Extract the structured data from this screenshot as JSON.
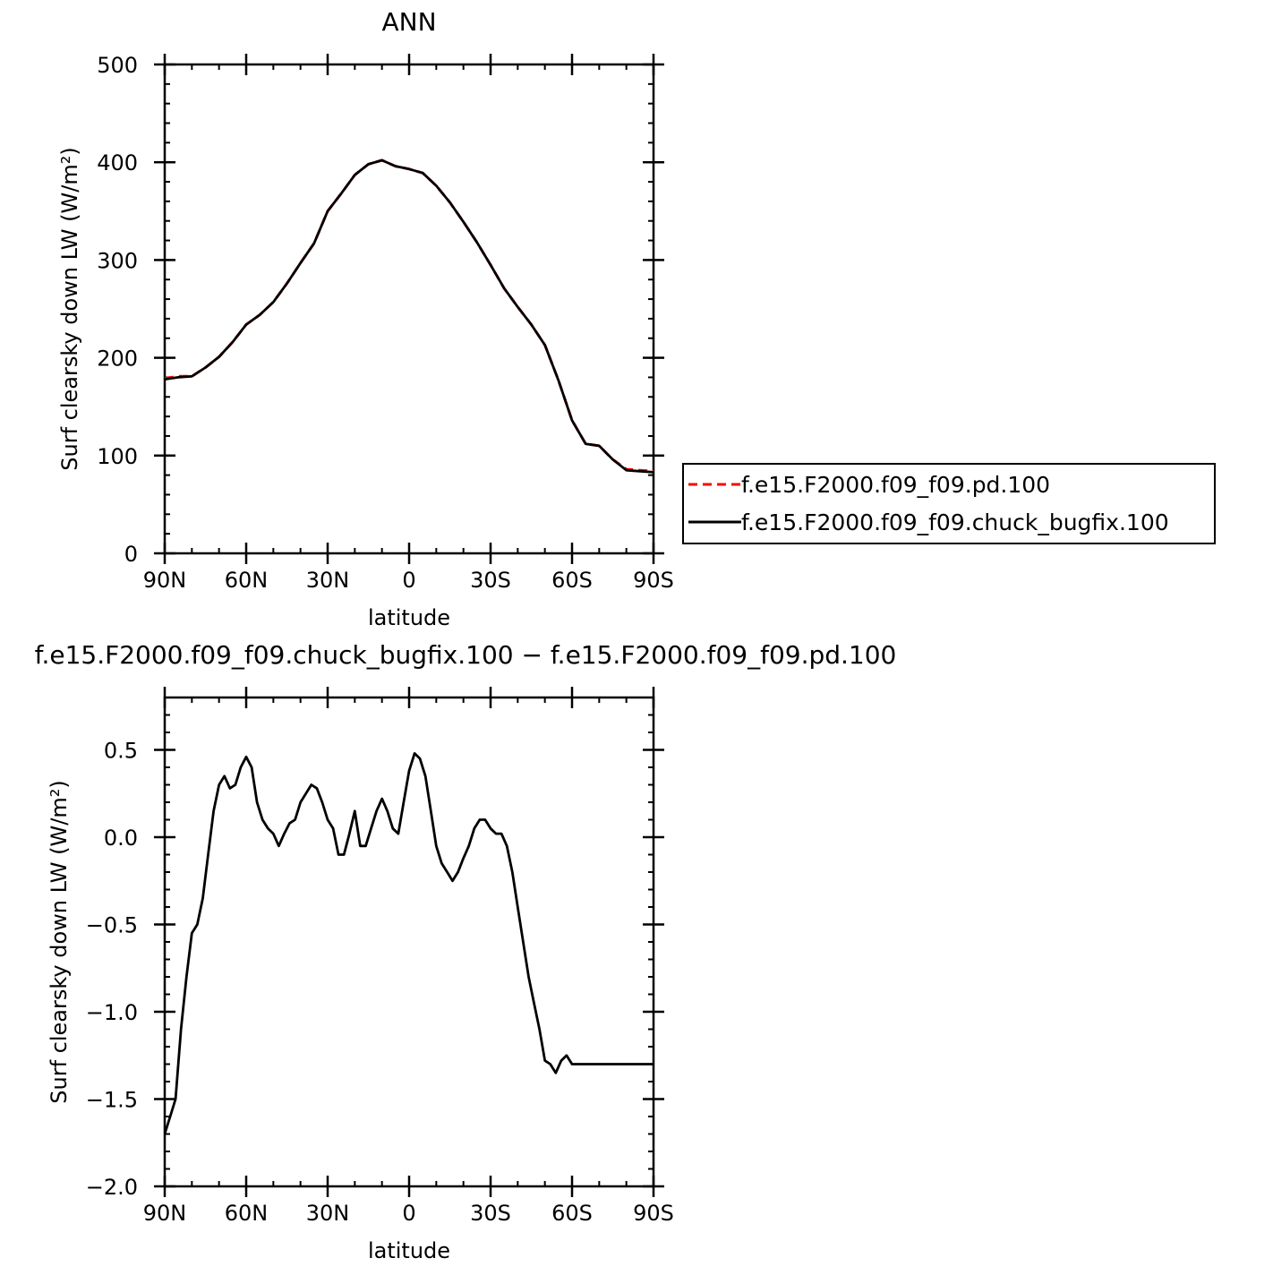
{
  "chart_data": [
    {
      "type": "line",
      "title": "ANN",
      "xlabel": "latitude",
      "ylabel": "Surf clearsky down LW (W/m²)",
      "xlim": [
        90,
        -90
      ],
      "ylim": [
        0,
        500
      ],
      "xticks": [
        {
          "value": 90,
          "label": "90N"
        },
        {
          "value": 60,
          "label": "60N"
        },
        {
          "value": 30,
          "label": "30N"
        },
        {
          "value": 0,
          "label": "0"
        },
        {
          "value": -30,
          "label": "30S"
        },
        {
          "value": -60,
          "label": "60S"
        },
        {
          "value": -90,
          "label": "90S"
        }
      ],
      "yticks": [
        {
          "value": 0,
          "label": "0"
        },
        {
          "value": 100,
          "label": "100"
        },
        {
          "value": 200,
          "label": "200"
        },
        {
          "value": 300,
          "label": "300"
        },
        {
          "value": 400,
          "label": "400"
        },
        {
          "value": 500,
          "label": "500"
        }
      ],
      "legend": {
        "position": "right"
      },
      "series": [
        {
          "name": "f.e15.F2000.f09_f09.pd.100",
          "color": "#ff0000",
          "dash": "dashed",
          "x": [
            90,
            85,
            80,
            75,
            70,
            65,
            60,
            55,
            50,
            45,
            40,
            35,
            30,
            25,
            20,
            15,
            10,
            5,
            0,
            -5,
            -10,
            -15,
            -20,
            -25,
            -30,
            -35,
            -40,
            -45,
            -50,
            -55,
            -60,
            -65,
            -70,
            -75,
            -80,
            -85,
            -90
          ],
          "y": [
            179,
            181,
            181,
            190,
            201,
            216,
            234,
            244,
            257,
            276,
            297,
            317,
            350,
            368,
            387,
            398,
            402,
            396,
            393,
            389,
            376,
            359,
            339,
            318,
            295,
            271,
            252,
            234,
            213,
            177,
            136,
            112,
            110,
            96,
            86,
            85,
            84
          ]
        },
        {
          "name": "f.e15.F2000.f09_f09.chuck_bugfix.100",
          "color": "#000000",
          "dash": "solid",
          "x": [
            90,
            85,
            80,
            75,
            70,
            65,
            60,
            55,
            50,
            45,
            40,
            35,
            30,
            25,
            20,
            15,
            10,
            5,
            0,
            -5,
            -10,
            -15,
            -20,
            -25,
            -30,
            -35,
            -40,
            -45,
            -50,
            -55,
            -60,
            -65,
            -70,
            -75,
            -80,
            -85,
            -90
          ],
          "y": [
            178,
            180,
            181,
            190,
            201,
            216,
            234,
            244,
            257,
            276,
            297,
            317,
            350,
            368,
            387,
            398,
            402,
            396,
            393,
            389,
            376,
            359,
            339,
            318,
            295,
            271,
            252,
            234,
            213,
            177,
            136,
            112,
            110,
            96,
            85,
            84,
            83
          ]
        }
      ]
    },
    {
      "type": "line",
      "title": "f.e15.F2000.f09_f09.chuck_bugfix.100 − f.e15.F2000.f09_f09.pd.100",
      "xlabel": "latitude",
      "ylabel": "Surf clearsky down LW (W/m²)",
      "xlim": [
        90,
        -90
      ],
      "ylim": [
        -2.0,
        0.8
      ],
      "xticks": [
        {
          "value": 90,
          "label": "90N"
        },
        {
          "value": 60,
          "label": "60N"
        },
        {
          "value": 30,
          "label": "30N"
        },
        {
          "value": 0,
          "label": "0"
        },
        {
          "value": -30,
          "label": "30S"
        },
        {
          "value": -60,
          "label": "60S"
        },
        {
          "value": -90,
          "label": "90S"
        }
      ],
      "yticks": [
        {
          "value": 0.5,
          "label": "0.5"
        },
        {
          "value": 0.0,
          "label": "0.0"
        },
        {
          "value": -0.5,
          "label": "−0.5"
        },
        {
          "value": -1.0,
          "label": "−1.0"
        },
        {
          "value": -1.5,
          "label": "−1.5"
        },
        {
          "value": -2.0,
          "label": "−2.0"
        }
      ],
      "series": [
        {
          "color": "#000000",
          "dash": "solid",
          "x": [
            90,
            88,
            86,
            84,
            82,
            80,
            78,
            76,
            74,
            72,
            70,
            68,
            66,
            64,
            62,
            60,
            58,
            56,
            54,
            52,
            50,
            48,
            46,
            44,
            42,
            40,
            38,
            36,
            34,
            32,
            30,
            28,
            26,
            24,
            22,
            20,
            18,
            16,
            14,
            12,
            10,
            8,
            6,
            4,
            2,
            0,
            -2,
            -4,
            -6,
            -8,
            -10,
            -12,
            -14,
            -16,
            -18,
            -20,
            -22,
            -24,
            -26,
            -28,
            -30,
            -32,
            -34,
            -36,
            -38,
            -40,
            -42,
            -44,
            -46,
            -48,
            -50,
            -52,
            -54,
            -56,
            -58,
            -60,
            -62,
            -64,
            -66,
            -68,
            -70,
            -72,
            -74,
            -76,
            -78,
            -80,
            -82,
            -84,
            -86,
            -88,
            -90
          ],
          "y": [
            -1.7,
            -1.6,
            -1.5,
            -1.1,
            -0.8,
            -0.55,
            -0.5,
            -0.35,
            -0.1,
            0.15,
            0.3,
            0.35,
            0.28,
            0.3,
            0.4,
            0.46,
            0.4,
            0.2,
            0.1,
            0.05,
            0.02,
            -0.05,
            0.02,
            0.08,
            0.1,
            0.2,
            0.25,
            0.3,
            0.28,
            0.2,
            0.1,
            0.05,
            -0.1,
            -0.1,
            0.02,
            0.15,
            -0.05,
            -0.05,
            0.05,
            0.15,
            0.22,
            0.15,
            0.05,
            0.02,
            0.2,
            0.38,
            0.48,
            0.45,
            0.35,
            0.15,
            -0.05,
            -0.15,
            -0.2,
            -0.25,
            -0.2,
            -0.12,
            -0.05,
            0.05,
            0.1,
            0.1,
            0.05,
            0.02,
            0.02,
            -0.05,
            -0.2,
            -0.4,
            -0.6,
            -0.8,
            -0.95,
            -1.1,
            -1.28,
            -1.3,
            -1.35,
            -1.28,
            -1.25,
            -1.3,
            -1.3,
            -1.3,
            -1.3,
            -1.3,
            -1.3,
            -1.3,
            -1.3,
            -1.3,
            -1.3,
            -1.3,
            -1.3,
            -1.3,
            -1.3,
            -1.3,
            -1.3
          ]
        }
      ]
    }
  ],
  "legend_entries": [
    "f.e15.F2000.f09_f09.pd.100",
    "f.e15.F2000.f09_f09.chuck_bugfix.100"
  ]
}
